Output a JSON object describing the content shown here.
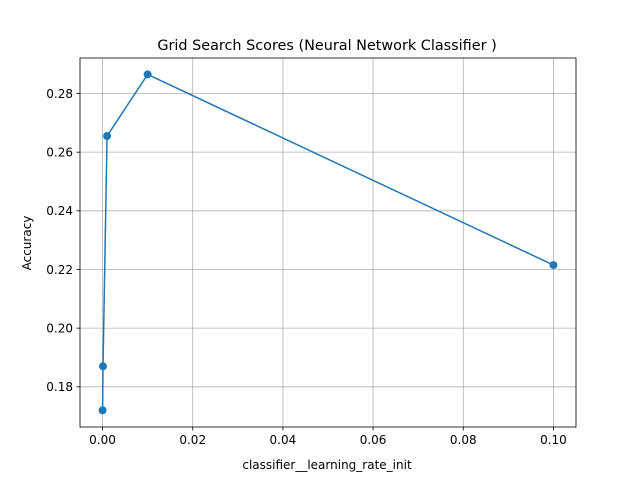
{
  "chart_data": {
    "type": "line",
    "title": "Grid Search Scores (Neural Network Classifier )",
    "xlabel": "classifier__learning_rate_init",
    "ylabel": "Accuracy",
    "xlim": [
      -0.005,
      0.105
    ],
    "ylim": [
      0.1663,
      0.2921
    ],
    "grid": true,
    "marker": "circle",
    "color": "#1f77b4",
    "x_ticks": [
      0.0,
      0.02,
      0.04,
      0.06,
      0.08,
      0.1
    ],
    "x_tick_labels": [
      "0.00",
      "0.02",
      "0.04",
      "0.06",
      "0.08",
      "0.10"
    ],
    "y_ticks": [
      0.18,
      0.2,
      0.22,
      0.24,
      0.26,
      0.28
    ],
    "y_tick_labels": [
      "0.18",
      "0.20",
      "0.22",
      "0.24",
      "0.26",
      "0.28"
    ],
    "series": [
      {
        "x": [
          1e-05,
          0.0001,
          0.001,
          0.01,
          0.1
        ],
        "y": [
          0.172,
          0.187,
          0.2655,
          0.2865,
          0.2215
        ]
      }
    ]
  }
}
